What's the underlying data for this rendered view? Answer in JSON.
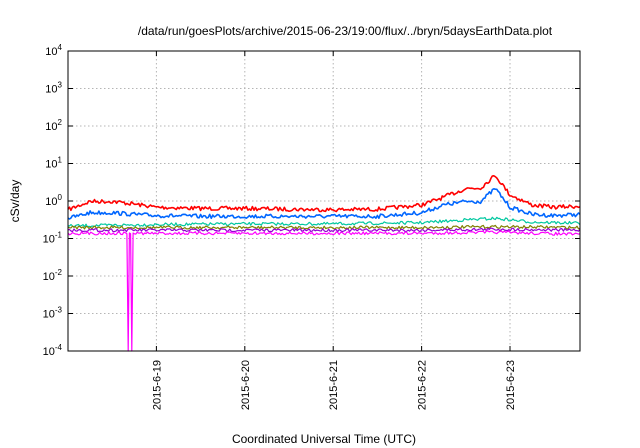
{
  "chart_data": {
    "type": "line",
    "title": "/data/run/goesPlots/archive/2015-06-23/19:00/flux/../bryn/5daysEarthData.plot",
    "xlabel": "Coordinated Universal Time (UTC)",
    "ylabel": "cSv/day",
    "yscale": "log",
    "ylim": [
      0.0001,
      10000
    ],
    "xlim": [
      "2015-06-18T00:00",
      "2015-06-23T19:00"
    ],
    "grid": true,
    "legend": "none",
    "xticks": [
      {
        "x": "2015-06-19",
        "label": "2015-6-19"
      },
      {
        "x": "2015-06-20",
        "label": "2015-6-20"
      },
      {
        "x": "2015-06-21",
        "label": "2015-6-21"
      },
      {
        "x": "2015-06-22",
        "label": "2015-6-22"
      },
      {
        "x": "2015-06-23",
        "label": "2015-6-23"
      }
    ],
    "yticks": [
      {
        "value": 0.0001,
        "base": "10",
        "exp": "-4"
      },
      {
        "value": 0.001,
        "base": "10",
        "exp": "-3"
      },
      {
        "value": 0.01,
        "base": "10",
        "exp": "-2"
      },
      {
        "value": 0.1,
        "base": "10",
        "exp": "-1"
      },
      {
        "value": 1,
        "base": "10",
        "exp": "0"
      },
      {
        "value": 10,
        "base": "10",
        "exp": "1"
      },
      {
        "value": 100,
        "base": "10",
        "exp": "2"
      },
      {
        "value": 1000,
        "base": "10",
        "exp": "3"
      },
      {
        "value": 10000,
        "base": "10",
        "exp": "4"
      }
    ],
    "series": [
      {
        "color": "#ff0000",
        "x": [
          "2015-06-18T00:00",
          "2015-06-18T06:00",
          "2015-06-18T12:00",
          "2015-06-18T18:00",
          "2015-06-19T00:00",
          "2015-06-19T12:00",
          "2015-06-20T00:00",
          "2015-06-20T12:00",
          "2015-06-21T00:00",
          "2015-06-21T12:00",
          "2015-06-22T00:00",
          "2015-06-22T06:00",
          "2015-06-22T12:00",
          "2015-06-22T16:00",
          "2015-06-22T20:00",
          "2015-06-23T00:00",
          "2015-06-23T06:00",
          "2015-06-23T12:00",
          "2015-06-23T19:00"
        ],
        "y": [
          0.6,
          1.0,
          1.0,
          0.85,
          0.7,
          0.65,
          0.65,
          0.62,
          0.6,
          0.62,
          0.8,
          1.3,
          2.2,
          2.3,
          5.0,
          1.5,
          0.8,
          0.7,
          0.75
        ]
      },
      {
        "color": "#0066ff",
        "x": [
          "2015-06-18T00:00",
          "2015-06-18T06:00",
          "2015-06-18T12:00",
          "2015-06-18T18:00",
          "2015-06-19T00:00",
          "2015-06-19T12:00",
          "2015-06-20T00:00",
          "2015-06-20T12:00",
          "2015-06-21T00:00",
          "2015-06-21T12:00",
          "2015-06-22T00:00",
          "2015-06-22T06:00",
          "2015-06-22T12:00",
          "2015-06-22T16:00",
          "2015-06-22T20:00",
          "2015-06-23T00:00",
          "2015-06-23T06:00",
          "2015-06-23T12:00",
          "2015-06-23T19:00"
        ],
        "y": [
          0.35,
          0.5,
          0.5,
          0.45,
          0.42,
          0.4,
          0.4,
          0.4,
          0.4,
          0.4,
          0.5,
          0.8,
          1.0,
          1.0,
          2.2,
          0.7,
          0.45,
          0.42,
          0.45
        ]
      },
      {
        "color": "#00c8a0",
        "x": [
          "2015-06-18T00:00",
          "2015-06-19T00:00",
          "2015-06-20T00:00",
          "2015-06-21T00:00",
          "2015-06-22T00:00",
          "2015-06-22T12:00",
          "2015-06-22T20:00",
          "2015-06-23T06:00",
          "2015-06-23T19:00"
        ],
        "y": [
          0.22,
          0.24,
          0.25,
          0.25,
          0.27,
          0.32,
          0.35,
          0.28,
          0.26
        ]
      },
      {
        "color": "#808000",
        "x": [
          "2015-06-18T00:00",
          "2015-06-19T00:00",
          "2015-06-20T00:00",
          "2015-06-21T00:00",
          "2015-06-22T00:00",
          "2015-06-22T20:00",
          "2015-06-23T19:00"
        ],
        "y": [
          0.2,
          0.2,
          0.2,
          0.2,
          0.2,
          0.21,
          0.2
        ]
      },
      {
        "color": "#9400d3",
        "x": [
          "2015-06-18T00:00",
          "2015-06-19T00:00",
          "2015-06-20T00:00",
          "2015-06-21T00:00",
          "2015-06-22T00:00",
          "2015-06-22T20:00",
          "2015-06-23T19:00"
        ],
        "y": [
          0.17,
          0.17,
          0.17,
          0.17,
          0.17,
          0.18,
          0.17
        ]
      },
      {
        "color": "#ff00ff",
        "x": [
          "2015-06-18T00:00",
          "2015-06-18T16:00",
          "2015-06-18T16:20",
          "2015-06-18T16:40",
          "2015-06-18T17:00",
          "2015-06-18T17:20",
          "2015-06-18T17:40",
          "2015-06-18T18:00",
          "2015-06-19T00:00",
          "2015-06-20T00:00",
          "2015-06-21T00:00",
          "2015-06-22T00:00",
          "2015-06-22T20:00",
          "2015-06-23T19:00"
        ],
        "y": [
          0.14,
          0.14,
          0.0001,
          0.14,
          0.14,
          0.0001,
          0.14,
          0.14,
          0.14,
          0.14,
          0.14,
          0.14,
          0.15,
          0.13
        ]
      }
    ]
  }
}
